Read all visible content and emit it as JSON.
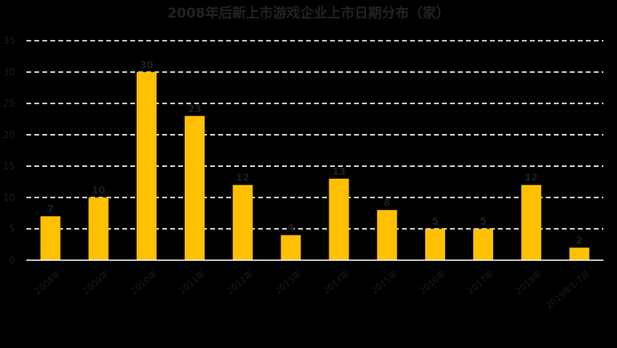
{
  "chart_data": {
    "type": "bar",
    "title": "2008年后新上市游戏企业上市日期分布（家）",
    "categories": [
      "2008年",
      "2009年",
      "2010年",
      "2011年",
      "2012年",
      "2013年",
      "2014年",
      "2015年",
      "2016年",
      "2017年",
      "2018年",
      "2019年1-7月"
    ],
    "values": [
      7,
      10,
      30,
      23,
      12,
      4,
      13,
      8,
      5,
      5,
      12,
      2
    ],
    "ylim": [
      0,
      35
    ],
    "yticks": [
      0,
      5,
      10,
      15,
      20,
      25,
      30,
      35
    ],
    "grid": true,
    "legend": "none"
  },
  "colors": {
    "background": "#000000",
    "bar": "#FFC000",
    "grid": "#FFFFFF",
    "text": "#1A1A1A"
  }
}
